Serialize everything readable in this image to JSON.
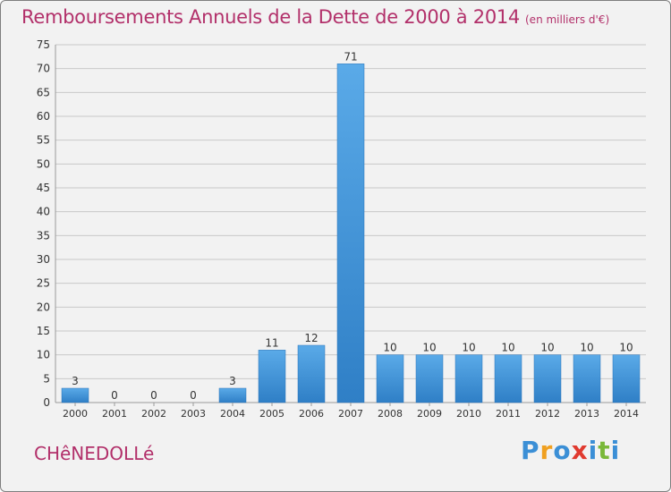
{
  "header": {
    "title": "Remboursements Annuels de la Dette de 2000 à 2014",
    "unit": "(en milliers d'€)"
  },
  "commune": "CHêNEDOLLé",
  "logo": {
    "text": "Proxiti",
    "letters": [
      {
        "char": "P",
        "color": "#3b8fd6"
      },
      {
        "char": "r",
        "color": "#f0a020"
      },
      {
        "char": "o",
        "color": "#3b8fd6"
      },
      {
        "char": "x",
        "color": "#e03a2f"
      },
      {
        "char": "i",
        "color": "#3b8fd6"
      },
      {
        "char": "t",
        "color": "#7ab83a"
      },
      {
        "char": "i",
        "color": "#3b8fd6"
      }
    ]
  },
  "chart_data": {
    "type": "bar",
    "title": "Remboursements Annuels de la Dette de 2000 à 2014",
    "categories": [
      "2000",
      "2001",
      "2002",
      "2003",
      "2004",
      "2005",
      "2006",
      "2007",
      "2008",
      "2009",
      "2010",
      "2011",
      "2012",
      "2013",
      "2014"
    ],
    "values": [
      3,
      0,
      0,
      0,
      3,
      11,
      12,
      71,
      10,
      10,
      10,
      10,
      10,
      10,
      10
    ],
    "ylim": [
      0,
      75
    ],
    "yticks": [
      0,
      5,
      10,
      15,
      20,
      25,
      30,
      35,
      40,
      45,
      50,
      55,
      60,
      65,
      70,
      75
    ],
    "grid": true,
    "bar_color": "#3d8fd8"
  }
}
